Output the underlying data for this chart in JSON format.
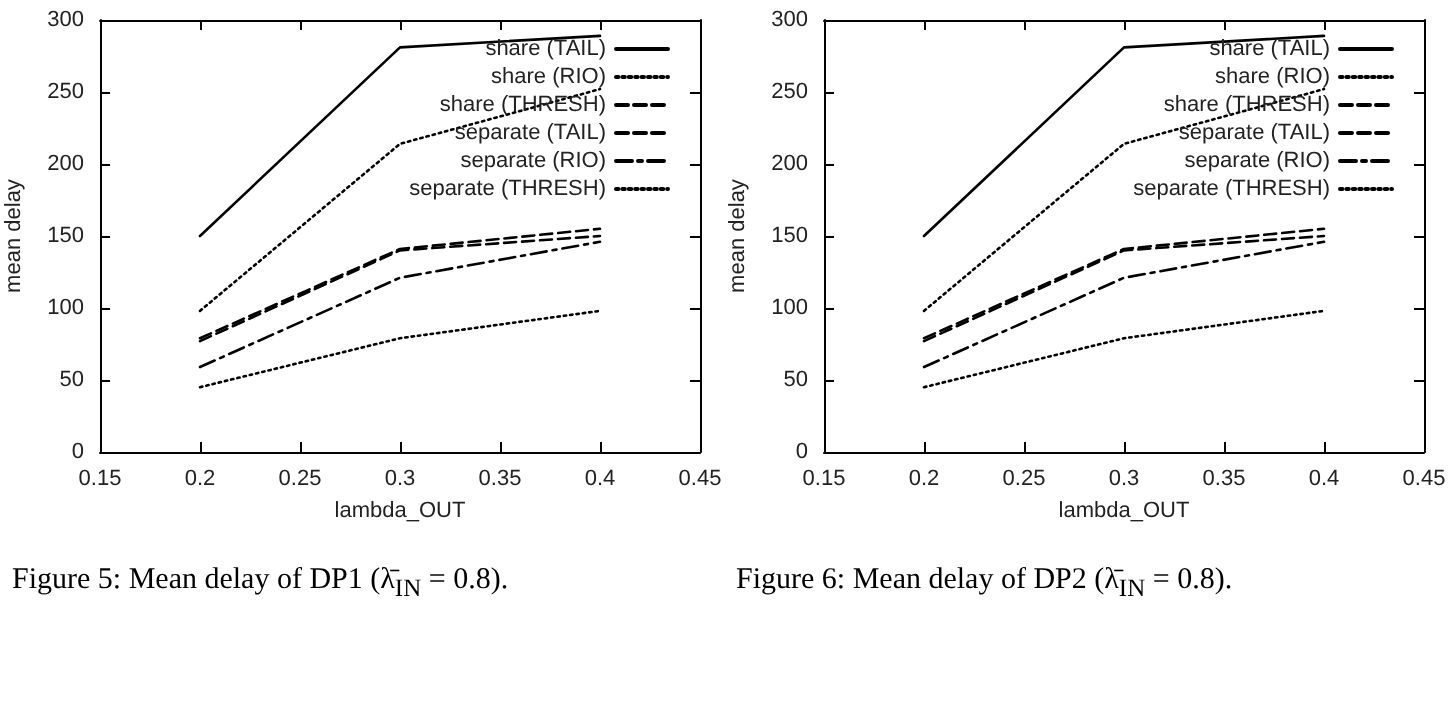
{
  "chart_data": [
    {
      "type": "line",
      "xlabel": "lambda_OUT",
      "ylabel": "mean delay",
      "x": [
        0.2,
        0.3,
        0.4
      ],
      "xlim": [
        0.15,
        0.45
      ],
      "xticks": [
        0.15,
        0.2,
        0.25,
        0.3,
        0.35,
        0.4,
        0.45
      ],
      "ylim": [
        0,
        300
      ],
      "yticks": [
        0,
        50,
        100,
        150,
        200,
        250,
        300
      ],
      "grid": false,
      "legend": "top right",
      "marker": "none",
      "annotations": [
        "Figure 5: Mean delay of DP1 (λ̄$_{IN}$ = 0.8)."
      ],
      "series": [
        {
          "name": "share (TAIL)",
          "color": "#000000",
          "line_style": "solid",
          "values": [
            150,
            281,
            289
          ]
        },
        {
          "name": "share (RIO)",
          "color": "#000000",
          "line_style": "dotted",
          "values": [
            98,
            214,
            252
          ]
        },
        {
          "name": "share (THRESH)",
          "color": "#000000",
          "line_style": "dashed",
          "values": [
            79,
            141,
            155
          ]
        },
        {
          "name": "separate (TAIL)",
          "color": "#000000",
          "line_style": "dashed",
          "values": [
            77,
            140,
            150
          ]
        },
        {
          "name": "separate (RIO)",
          "color": "#000000",
          "line_style": "dashdot",
          "values": [
            59,
            121,
            146
          ]
        },
        {
          "name": "separate (THRESH)",
          "color": "#000000",
          "line_style": "dotted",
          "values": [
            45,
            79,
            98
          ]
        }
      ]
    },
    {
      "type": "line",
      "xlabel": "lambda_OUT",
      "ylabel": "mean delay",
      "x": [
        0.2,
        0.3,
        0.4
      ],
      "xlim": [
        0.15,
        0.45
      ],
      "xticks": [
        0.15,
        0.2,
        0.25,
        0.3,
        0.35,
        0.4,
        0.45
      ],
      "ylim": [
        0,
        300
      ],
      "yticks": [
        0,
        50,
        100,
        150,
        200,
        250,
        300
      ],
      "grid": false,
      "legend": "top right",
      "marker": "none",
      "annotations": [
        "Figure 6: Mean delay of DP2 (λ̄$_{IN}$ = 0.8)."
      ],
      "series": [
        {
          "name": "share (TAIL)",
          "color": "#000000",
          "line_style": "solid",
          "values": [
            150,
            281,
            289
          ]
        },
        {
          "name": "share (RIO)",
          "color": "#000000",
          "line_style": "dotted",
          "values": [
            98,
            214,
            252
          ]
        },
        {
          "name": "share (THRESH)",
          "color": "#000000",
          "line_style": "dashed",
          "values": [
            79,
            141,
            155
          ]
        },
        {
          "name": "separate (TAIL)",
          "color": "#000000",
          "line_style": "dashed",
          "values": [
            77,
            140,
            150
          ]
        },
        {
          "name": "separate (RIO)",
          "color": "#000000",
          "line_style": "dashdot",
          "values": [
            59,
            121,
            146
          ]
        },
        {
          "name": "separate (THRESH)",
          "color": "#000000",
          "line_style": "dotted",
          "values": [
            45,
            79,
            98
          ]
        }
      ]
    }
  ]
}
